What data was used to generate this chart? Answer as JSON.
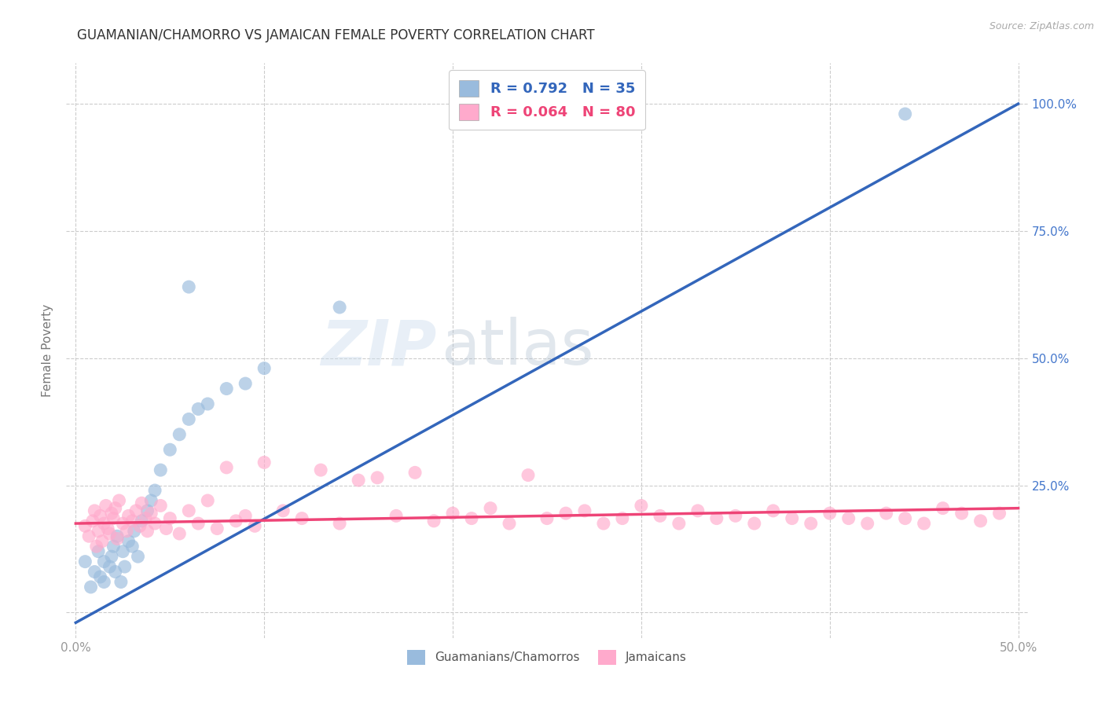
{
  "title": "GUAMANIAN/CHAMORRO VS JAMAICAN FEMALE POVERTY CORRELATION CHART",
  "source": "Source: ZipAtlas.com",
  "ylabel_label": "Female Poverty",
  "xlim": [
    -0.005,
    0.505
  ],
  "ylim": [
    -0.05,
    1.08
  ],
  "blue_color": "#99BBDD",
  "pink_color": "#FFAACC",
  "blue_line_color": "#3366BB",
  "pink_line_color": "#EE4477",
  "legend_text_color": "#3366BB",
  "legend_R_blue": "R = 0.792",
  "legend_N_blue": "N = 35",
  "legend_R_pink": "R = 0.064",
  "legend_N_pink": "N = 80",
  "watermark_zip": "ZIP",
  "watermark_atlas": "atlas",
  "legend_label_blue": "Guamanians/Chamorros",
  "legend_label_pink": "Jamaicans",
  "blue_line_x0": 0.0,
  "blue_line_y0": -0.02,
  "blue_line_x1": 0.5,
  "blue_line_y1": 1.0,
  "pink_line_x0": 0.0,
  "pink_line_y0": 0.175,
  "pink_line_x1": 0.5,
  "pink_line_y1": 0.205,
  "grid_color": "#CCCCCC",
  "background_color": "#FFFFFF",
  "title_color": "#333333",
  "axis_label_color": "#777777",
  "tick_color": "#999999",
  "right_tick_color": "#4477CC",
  "blue_x": [
    0.005,
    0.008,
    0.01,
    0.012,
    0.013,
    0.015,
    0.015,
    0.018,
    0.019,
    0.02,
    0.021,
    0.022,
    0.024,
    0.025,
    0.026,
    0.028,
    0.03,
    0.031,
    0.033,
    0.035,
    0.038,
    0.04,
    0.042,
    0.045,
    0.05,
    0.055,
    0.06,
    0.065,
    0.07,
    0.08,
    0.09,
    0.1,
    0.14,
    0.44,
    0.06
  ],
  "blue_y": [
    0.1,
    0.05,
    0.08,
    0.12,
    0.07,
    0.06,
    0.1,
    0.09,
    0.11,
    0.13,
    0.08,
    0.15,
    0.06,
    0.12,
    0.09,
    0.14,
    0.13,
    0.16,
    0.11,
    0.18,
    0.2,
    0.22,
    0.24,
    0.28,
    0.32,
    0.35,
    0.38,
    0.4,
    0.41,
    0.44,
    0.45,
    0.48,
    0.6,
    0.98,
    0.64
  ],
  "pink_x": [
    0.005,
    0.007,
    0.009,
    0.01,
    0.011,
    0.012,
    0.013,
    0.014,
    0.015,
    0.016,
    0.017,
    0.018,
    0.019,
    0.02,
    0.021,
    0.022,
    0.023,
    0.025,
    0.027,
    0.028,
    0.03,
    0.032,
    0.034,
    0.035,
    0.037,
    0.038,
    0.04,
    0.042,
    0.045,
    0.048,
    0.05,
    0.055,
    0.06,
    0.065,
    0.07,
    0.075,
    0.08,
    0.085,
    0.09,
    0.095,
    0.1,
    0.11,
    0.12,
    0.13,
    0.14,
    0.15,
    0.16,
    0.17,
    0.18,
    0.19,
    0.2,
    0.21,
    0.22,
    0.23,
    0.24,
    0.25,
    0.26,
    0.27,
    0.28,
    0.29,
    0.3,
    0.31,
    0.32,
    0.33,
    0.34,
    0.35,
    0.36,
    0.37,
    0.38,
    0.39,
    0.4,
    0.41,
    0.42,
    0.43,
    0.44,
    0.45,
    0.46,
    0.47,
    0.48,
    0.49
  ],
  "pink_y": [
    0.17,
    0.15,
    0.18,
    0.2,
    0.13,
    0.16,
    0.19,
    0.14,
    0.175,
    0.21,
    0.165,
    0.155,
    0.195,
    0.185,
    0.205,
    0.145,
    0.22,
    0.175,
    0.16,
    0.19,
    0.18,
    0.2,
    0.17,
    0.215,
    0.185,
    0.16,
    0.195,
    0.175,
    0.21,
    0.165,
    0.185,
    0.155,
    0.2,
    0.175,
    0.22,
    0.165,
    0.285,
    0.18,
    0.19,
    0.17,
    0.295,
    0.2,
    0.185,
    0.28,
    0.175,
    0.26,
    0.265,
    0.19,
    0.275,
    0.18,
    0.195,
    0.185,
    0.205,
    0.175,
    0.27,
    0.185,
    0.195,
    0.2,
    0.175,
    0.185,
    0.21,
    0.19,
    0.175,
    0.2,
    0.185,
    0.19,
    0.175,
    0.2,
    0.185,
    0.175,
    0.195,
    0.185,
    0.175,
    0.195,
    0.185,
    0.175,
    0.205,
    0.195,
    0.18,
    0.195
  ]
}
